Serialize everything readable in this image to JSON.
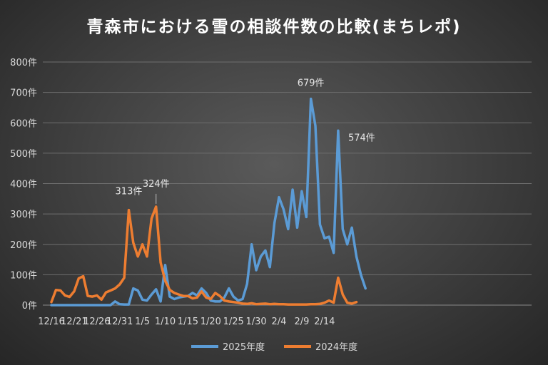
{
  "chart_data": {
    "type": "line",
    "title": "青森市における雪の相談件数の比較(まちレポ)",
    "ylim": [
      0,
      800
    ],
    "y_ticks": [
      "0件",
      "100件",
      "200件",
      "300件",
      "400件",
      "500件",
      "600件",
      "700件",
      "800件"
    ],
    "x_ticks": [
      "12/16",
      "12/21",
      "12/26",
      "12/31",
      "1/5",
      "1/10",
      "1/15",
      "1/20",
      "1/25",
      "1/30",
      "2/4",
      "2/9",
      "2/14"
    ],
    "xlabel": "",
    "ylabel": "",
    "grid": true,
    "legend_position": "bottom",
    "series": [
      {
        "name": "2025年度",
        "color": "#5b9bd5",
        "values": [
          0,
          0,
          0,
          0,
          0,
          0,
          0,
          0,
          0,
          0,
          0,
          0,
          0,
          0,
          12,
          3,
          2,
          2,
          55,
          48,
          18,
          15,
          35,
          52,
          12,
          132,
          28,
          20,
          25,
          28,
          30,
          40,
          32,
          55,
          40,
          15,
          12,
          12,
          25,
          55,
          28,
          15,
          20,
          70,
          200,
          115,
          160,
          180,
          125,
          270,
          355,
          315,
          250,
          380,
          255,
          375,
          290,
          679,
          590,
          265,
          220,
          225,
          172,
          574,
          250,
          200,
          255,
          160,
          100,
          55
        ]
      },
      {
        "name": "2024年度",
        "color": "#ed7d31",
        "values": [
          10,
          50,
          48,
          32,
          27,
          45,
          88,
          95,
          30,
          28,
          32,
          18,
          42,
          48,
          55,
          68,
          90,
          313,
          205,
          160,
          200,
          160,
          285,
          324,
          140,
          80,
          50,
          40,
          35,
          30,
          30,
          22,
          25,
          45,
          25,
          20,
          40,
          30,
          15,
          12,
          10,
          8,
          5,
          4,
          6,
          3,
          4,
          5,
          3,
          4,
          3,
          3,
          2,
          2,
          2,
          2,
          2,
          3,
          3,
          4,
          8,
          15,
          8,
          90,
          35,
          8,
          5,
          10
        ]
      }
    ],
    "annotations": [
      {
        "text": "313件",
        "series": 1,
        "index": 17
      },
      {
        "text": "324件",
        "series": 1,
        "index": 23
      },
      {
        "text": "679件",
        "series": 0,
        "index": 57
      },
      {
        "text": "574件",
        "series": 0,
        "index": 63
      }
    ]
  }
}
